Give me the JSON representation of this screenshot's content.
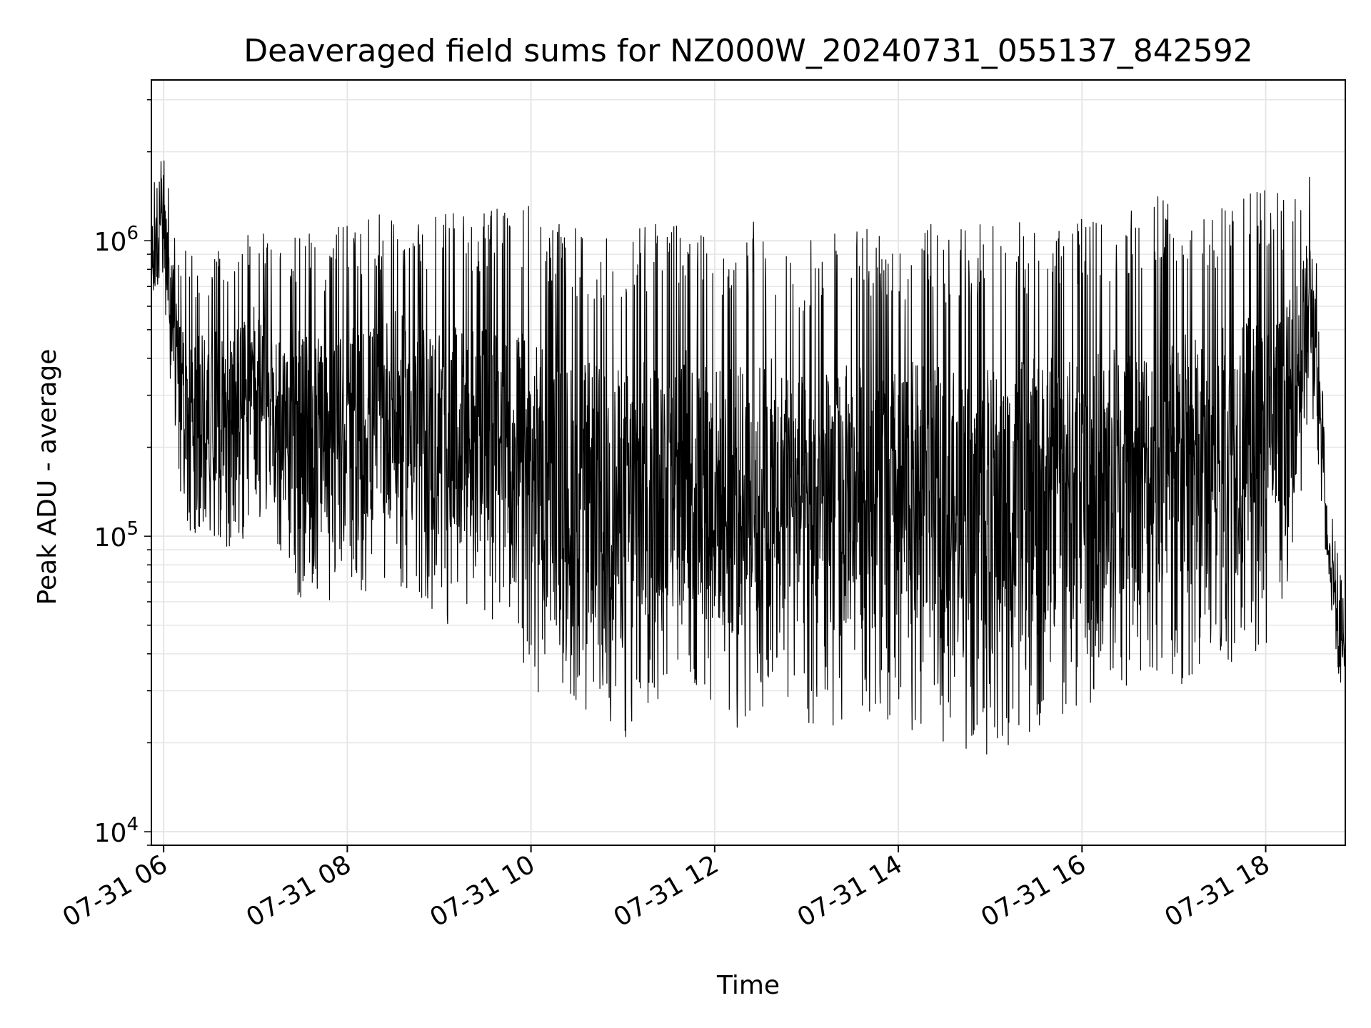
{
  "chart_data": {
    "type": "line",
    "title": "Deaveraged field sums for NZ000W_20240731_055137_842592",
    "xlabel": "Time",
    "ylabel": "Peak ADU - average",
    "y_scale": "log",
    "ylim": [
      9000,
      3500000
    ],
    "xlim": [
      "2024-07-31T05:52",
      "2024-07-31T18:52"
    ],
    "grid": true,
    "legend": "none",
    "line_color": "#000000",
    "grid_color": "#e6e6e6",
    "x_ticks": [
      {
        "label": "07-31 06",
        "value": "2024-07-31T06:00"
      },
      {
        "label": "07-31 08",
        "value": "2024-07-31T08:00"
      },
      {
        "label": "07-31 10",
        "value": "2024-07-31T10:00"
      },
      {
        "label": "07-31 12",
        "value": "2024-07-31T12:00"
      },
      {
        "label": "07-31 14",
        "value": "2024-07-31T14:00"
      },
      {
        "label": "07-31 16",
        "value": "2024-07-31T16:00"
      },
      {
        "label": "07-31 18",
        "value": "2024-07-31T18:00"
      }
    ],
    "y_ticks": [
      {
        "base": "10",
        "exp": "4",
        "value": 10000
      },
      {
        "base": "10",
        "exp": "5",
        "value": 100000
      },
      {
        "base": "10",
        "exp": "6",
        "value": 1000000
      }
    ],
    "series": [
      {
        "x": [
          "2024-07-31T05:52",
          "2024-07-31T06:00",
          "2024-07-31T06:10",
          "2024-07-31T06:20",
          "2024-07-31T06:30",
          "2024-07-31T06:45",
          "2024-07-31T07:00",
          "2024-07-31T07:15",
          "2024-07-31T07:30",
          "2024-07-31T07:45",
          "2024-07-31T08:00",
          "2024-07-31T08:15",
          "2024-07-31T08:30",
          "2024-07-31T08:45",
          "2024-07-31T09:00",
          "2024-07-31T09:15",
          "2024-07-31T09:30",
          "2024-07-31T09:45",
          "2024-07-31T10:00",
          "2024-07-31T10:15",
          "2024-07-31T10:30",
          "2024-07-31T10:45",
          "2024-07-31T11:00",
          "2024-07-31T11:15",
          "2024-07-31T11:30",
          "2024-07-31T11:45",
          "2024-07-31T12:00",
          "2024-07-31T12:15",
          "2024-07-31T12:30",
          "2024-07-31T12:45",
          "2024-07-31T13:00",
          "2024-07-31T13:15",
          "2024-07-31T13:30",
          "2024-07-31T13:45",
          "2024-07-31T14:00",
          "2024-07-31T14:15",
          "2024-07-31T14:30",
          "2024-07-31T14:45",
          "2024-07-31T15:00",
          "2024-07-31T15:15",
          "2024-07-31T15:30",
          "2024-07-31T15:45",
          "2024-07-31T16:00",
          "2024-07-31T16:15",
          "2024-07-31T16:30",
          "2024-07-31T16:45",
          "2024-07-31T17:00",
          "2024-07-31T17:15",
          "2024-07-31T17:30",
          "2024-07-31T17:45",
          "2024-07-31T18:00",
          "2024-07-31T18:15",
          "2024-07-31T18:30",
          "2024-07-31T18:40",
          "2024-07-31T18:52"
        ],
        "low": [
          500000,
          600000,
          150000,
          90000,
          100000,
          90000,
          100000,
          80000,
          60000,
          60000,
          50000,
          60000,
          70000,
          60000,
          50000,
          50000,
          50000,
          50000,
          30000,
          25000,
          25000,
          25000,
          20000,
          22000,
          30000,
          30000,
          25000,
          22000,
          25000,
          30000,
          22000,
          20000,
          25000,
          25000,
          22000,
          22000,
          20000,
          18000,
          18000,
          20000,
          22000,
          25000,
          22000,
          25000,
          30000,
          30000,
          30000,
          30000,
          35000,
          40000,
          40000,
          60000,
          250000,
          80000,
          20000
        ],
        "high": [
          1500000,
          2000000,
          1000000,
          900000,
          900000,
          1000000,
          1200000,
          1000000,
          1100000,
          1000000,
          1200000,
          1200000,
          1300000,
          1200000,
          1300000,
          1200000,
          1300000,
          1400000,
          1300000,
          1200000,
          1100000,
          1100000,
          1100000,
          1200000,
          1200000,
          1200000,
          1100000,
          1100000,
          1200000,
          1000000,
          1000000,
          1100000,
          1100000,
          1100000,
          1100000,
          1200000,
          1100000,
          1100000,
          1200000,
          1200000,
          1200000,
          1200000,
          1200000,
          1300000,
          1300000,
          1400000,
          1500000,
          1400000,
          1400000,
          1500000,
          1500000,
          1500000,
          2000000,
          150000,
          60000
        ]
      }
    ]
  }
}
